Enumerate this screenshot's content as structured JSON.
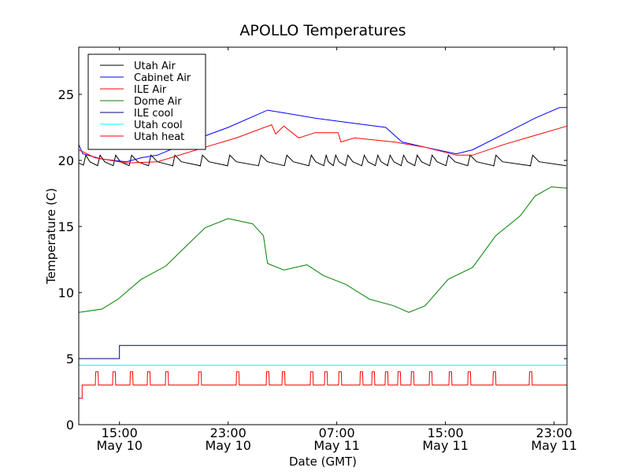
{
  "chart_data": {
    "type": "line",
    "title": "APOLLO Temperatures",
    "xlabel": "Date (GMT)",
    "ylabel": "Temperature (C)",
    "x_units": "hours since 12:00 May 10",
    "xlim": [
      0,
      35.95
    ],
    "ylim": [
      0,
      28.57
    ],
    "grid": false,
    "legend_position": "top-left",
    "xticks": [
      {
        "value": 3,
        "time": "15:00",
        "date": "May 10"
      },
      {
        "value": 11,
        "time": "23:00",
        "date": "May 10"
      },
      {
        "value": 19,
        "time": "07:00",
        "date": "May 11"
      },
      {
        "value": 27,
        "time": "15:00",
        "date": "May 11"
      },
      {
        "value": 35,
        "time": "23:00",
        "date": "May 11"
      }
    ],
    "yticks": [
      0,
      5,
      10,
      15,
      20,
      25
    ],
    "series": [
      {
        "name": "Utah Air",
        "color": "#000000",
        "kind": "sawtooth",
        "base_value": 19.6,
        "peak_value": 20.4,
        "peak_hours": [
          0.4,
          1.45,
          2.6,
          3.77,
          5.2,
          6.96,
          8.99,
          11.0,
          13.3,
          15.2,
          17.0,
          18.1,
          18.8,
          19.7,
          20.9,
          21.9,
          22.8,
          23.8,
          24.8,
          25.9,
          27.1,
          28.7,
          30.6,
          33.3
        ]
      },
      {
        "name": "Cabinet Air",
        "color": "#0000ff",
        "x": [
          0,
          0.3,
          1.7,
          3.5,
          4.6,
          5.8,
          8.1,
          11,
          13.9,
          15.1,
          17.4,
          20.3,
          22.6,
          23.8,
          25.5,
          27.8,
          29,
          31.3,
          33.6,
          35.4,
          35.95
        ],
        "y": [
          21.2,
          20.5,
          20.1,
          19.9,
          20.2,
          20.4,
          21.4,
          22.5,
          23.8,
          23.6,
          23.2,
          22.8,
          22.5,
          21.4,
          21.0,
          20.5,
          20.8,
          22.0,
          23.2,
          24.0,
          24.0
        ]
      },
      {
        "name": "ILE Air",
        "color": "#ff0000",
        "x": [
          0,
          1.2,
          3.5,
          5.8,
          9.3,
          11.6,
          14.2,
          14.5,
          15.1,
          16.2,
          17.4,
          19.1,
          19.3,
          20.3,
          23.2,
          25.5,
          27.8,
          29,
          31.3,
          33.6,
          35.95
        ],
        "y": [
          20.8,
          20.2,
          19.8,
          19.9,
          21.0,
          21.7,
          22.7,
          22.0,
          22.6,
          21.7,
          22.1,
          22.1,
          21.4,
          21.7,
          21.4,
          21.0,
          20.4,
          20.4,
          21.2,
          21.9,
          22.6
        ]
      },
      {
        "name": "Dome Air",
        "color": "#008000",
        "x": [
          0,
          1.7,
          2.9,
          4.6,
          6.4,
          7.5,
          9.3,
          11,
          12.8,
          13.6,
          13.9,
          15.1,
          16.8,
          18,
          19.7,
          21.4,
          23.2,
          24.3,
          25.5,
          27.2,
          29,
          30.7,
          32.5,
          33.6,
          34.8,
          35.95
        ],
        "y": [
          8.5,
          8.75,
          9.5,
          11.0,
          12.0,
          13.1,
          14.9,
          15.6,
          15.2,
          14.3,
          12.2,
          11.7,
          12.1,
          11.3,
          10.6,
          9.5,
          9.0,
          8.5,
          9.0,
          11.0,
          11.9,
          14.3,
          15.8,
          17.3,
          18.0,
          17.9
        ]
      },
      {
        "name": "ILE cool",
        "color": "#000080",
        "x": [
          0,
          3,
          3,
          35.95
        ],
        "y": [
          5,
          5,
          6,
          6
        ]
      },
      {
        "name": "Utah cool",
        "color": "#00ffff",
        "x": [
          0,
          35.95
        ],
        "y": [
          4.5,
          4.5
        ]
      },
      {
        "name": "Utah heat",
        "color": "#ff0000",
        "kind": "pulses",
        "start_value": 2,
        "start_until": 0.25,
        "base_value": 3,
        "pulse_value": 4,
        "pulse_width": 0.2,
        "pulse_hours": [
          1.22,
          2.49,
          3.77,
          5.04,
          6.38,
          8.81,
          11.59,
          13.8,
          14.96,
          17.04,
          18.09,
          19.13,
          20.7,
          21.57,
          22.55,
          23.48,
          24.46,
          25.8,
          27.25,
          28.64,
          30.49,
          33.16
        ]
      }
    ]
  }
}
